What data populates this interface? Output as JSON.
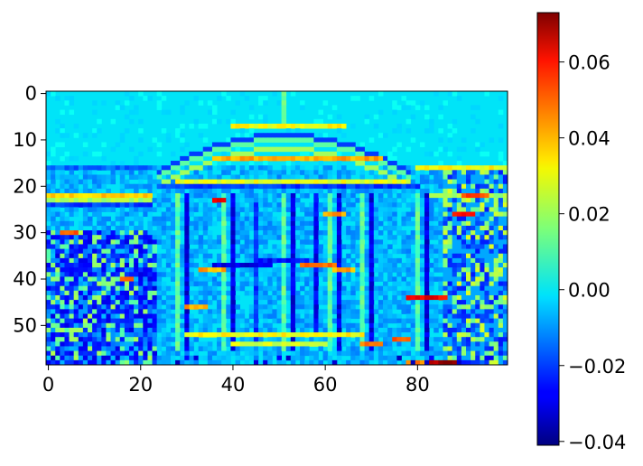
{
  "chart_data": {
    "type": "heatmap",
    "title": "",
    "xlabel": "",
    "ylabel": "",
    "colormap": "jet",
    "grid": false,
    "image_shape": {
      "cols": 100,
      "rows": 59
    },
    "xlim": [
      -0.5,
      99.5
    ],
    "ylim": [
      58.5,
      -0.5
    ],
    "x_ticks": [
      0,
      20,
      40,
      60,
      80
    ],
    "x_tick_labels": [
      "0",
      "20",
      "40",
      "60",
      "80"
    ],
    "y_ticks": [
      0,
      10,
      20,
      30,
      40,
      50
    ],
    "y_tick_labels": [
      "0",
      "10",
      "20",
      "30",
      "40",
      "50"
    ],
    "colorbar": {
      "vmin": -0.041,
      "vmax": 0.073,
      "ticks": [
        0.06,
        0.04,
        0.02,
        0.0,
        -0.02,
        -0.04
      ],
      "tick_labels": [
        "0.06",
        "0.04",
        "0.02",
        "0.00",
        "−0.02",
        "−0.04"
      ]
    },
    "description_values": {
      "background": 0.0,
      "features": "edge-filter response of a building facade with columns, arched roof line and side trees"
    }
  }
}
